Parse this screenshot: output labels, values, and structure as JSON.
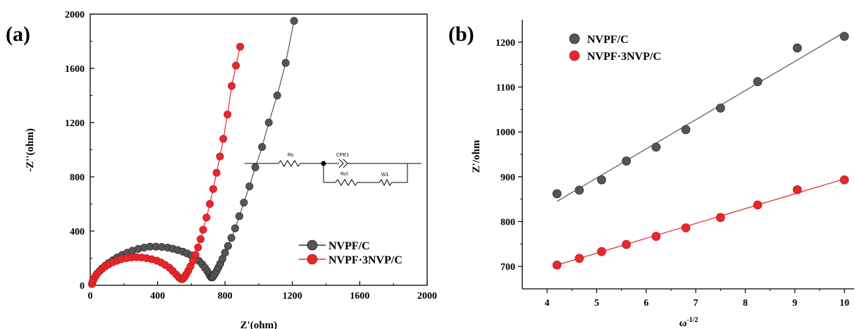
{
  "chart_data": [
    {
      "panel": "(a)",
      "type": "scatter",
      "xlabel": "Z'(ohm)",
      "ylabel": "-Z''(ohm)",
      "xlim": [
        0,
        2000
      ],
      "ylim": [
        0,
        2000
      ],
      "xticks": [
        "0",
        "400",
        "800",
        "1200",
        "1600",
        "2000"
      ],
      "yticks": [
        "0",
        "400",
        "800",
        "1200",
        "1600",
        "2000"
      ],
      "legend_position": "bottom-right",
      "series": [
        {
          "name": "NVPF/C",
          "color": "#555555",
          "x": [
            10,
            15,
            20,
            30,
            40,
            55,
            70,
            90,
            110,
            135,
            160,
            190,
            220,
            250,
            285,
            320,
            355,
            390,
            425,
            460,
            490,
            520,
            550,
            575,
            600,
            625,
            645,
            665,
            680,
            695,
            705,
            712,
            718,
            722,
            726,
            732,
            740,
            750,
            760,
            772,
            785,
            800,
            818,
            838,
            860,
            885,
            912,
            945,
            980,
            1020,
            1060,
            1110,
            1160,
            1210
          ],
          "y": [
            10,
            30,
            45,
            65,
            85,
            105,
            125,
            145,
            165,
            185,
            205,
            225,
            240,
            255,
            268,
            278,
            285,
            285,
            283,
            278,
            270,
            260,
            248,
            235,
            220,
            200,
            180,
            155,
            130,
            105,
            85,
            70,
            60,
            58,
            60,
            70,
            85,
            105,
            130,
            160,
            195,
            240,
            290,
            350,
            420,
            510,
            610,
            730,
            870,
            1020,
            1200,
            1400,
            1640,
            1950
          ]
        },
        {
          "name": "NVPF·3NVP/C",
          "color": "#e8262b",
          "x": [
            10,
            15,
            20,
            30,
            40,
            55,
            70,
            90,
            110,
            135,
            160,
            185,
            215,
            245,
            275,
            305,
            335,
            365,
            395,
            420,
            445,
            470,
            490,
            510,
            525,
            537,
            545,
            552,
            560,
            570,
            582,
            595,
            610,
            625,
            640,
            655,
            670,
            690,
            710,
            730,
            750,
            770,
            790,
            815,
            840,
            865,
            890
          ],
          "y": [
            10,
            30,
            45,
            65,
            85,
            105,
            120,
            140,
            155,
            170,
            182,
            192,
            200,
            205,
            207,
            205,
            200,
            192,
            182,
            168,
            150,
            130,
            105,
            80,
            60,
            48,
            45,
            50,
            62,
            82,
            108,
            140,
            180,
            225,
            280,
            340,
            410,
            500,
            600,
            710,
            830,
            950,
            1080,
            1260,
            1470,
            1620,
            1760
          ]
        }
      ]
    },
    {
      "panel": "(b)",
      "type": "scatter",
      "xlabel": "ω",
      "xlabel_sup": "-1/2",
      "ylabel": "Z'/ohm",
      "xlim": [
        3.5,
        10.2
      ],
      "ylim": [
        650,
        1250
      ],
      "xticks": [
        "4",
        "5",
        "6",
        "7",
        "8",
        "9",
        "10"
      ],
      "yticks": [
        "700",
        "800",
        "900",
        "1000",
        "1100",
        "1200"
      ],
      "legend_position": "top-left",
      "series": [
        {
          "name": "NVPF/C",
          "color": "#555555",
          "x": [
            4.2,
            4.65,
            5.1,
            5.6,
            6.2,
            6.8,
            7.5,
            8.25,
            9.05,
            10.0
          ],
          "y": [
            862,
            870,
            893,
            935,
            966,
            1005,
            1053,
            1112,
            1187,
            1213
          ],
          "fit": [
            [
              4.2,
              845
            ],
            [
              10.0,
              1222
            ]
          ]
        },
        {
          "name": "NVPF·3NVP/C",
          "color": "#e8262b",
          "x": [
            4.2,
            4.65,
            5.1,
            5.6,
            6.2,
            6.8,
            7.5,
            8.25,
            9.05,
            10.0
          ],
          "y": [
            703,
            718,
            733,
            749,
            767,
            786,
            809,
            837,
            871,
            893
          ],
          "fit": [
            [
              4.2,
              703
            ],
            [
              10.0,
              895
            ]
          ]
        }
      ]
    }
  ],
  "inset": {
    "labels": [
      "Rs",
      "CPE1",
      "Rct",
      "W1"
    ]
  }
}
